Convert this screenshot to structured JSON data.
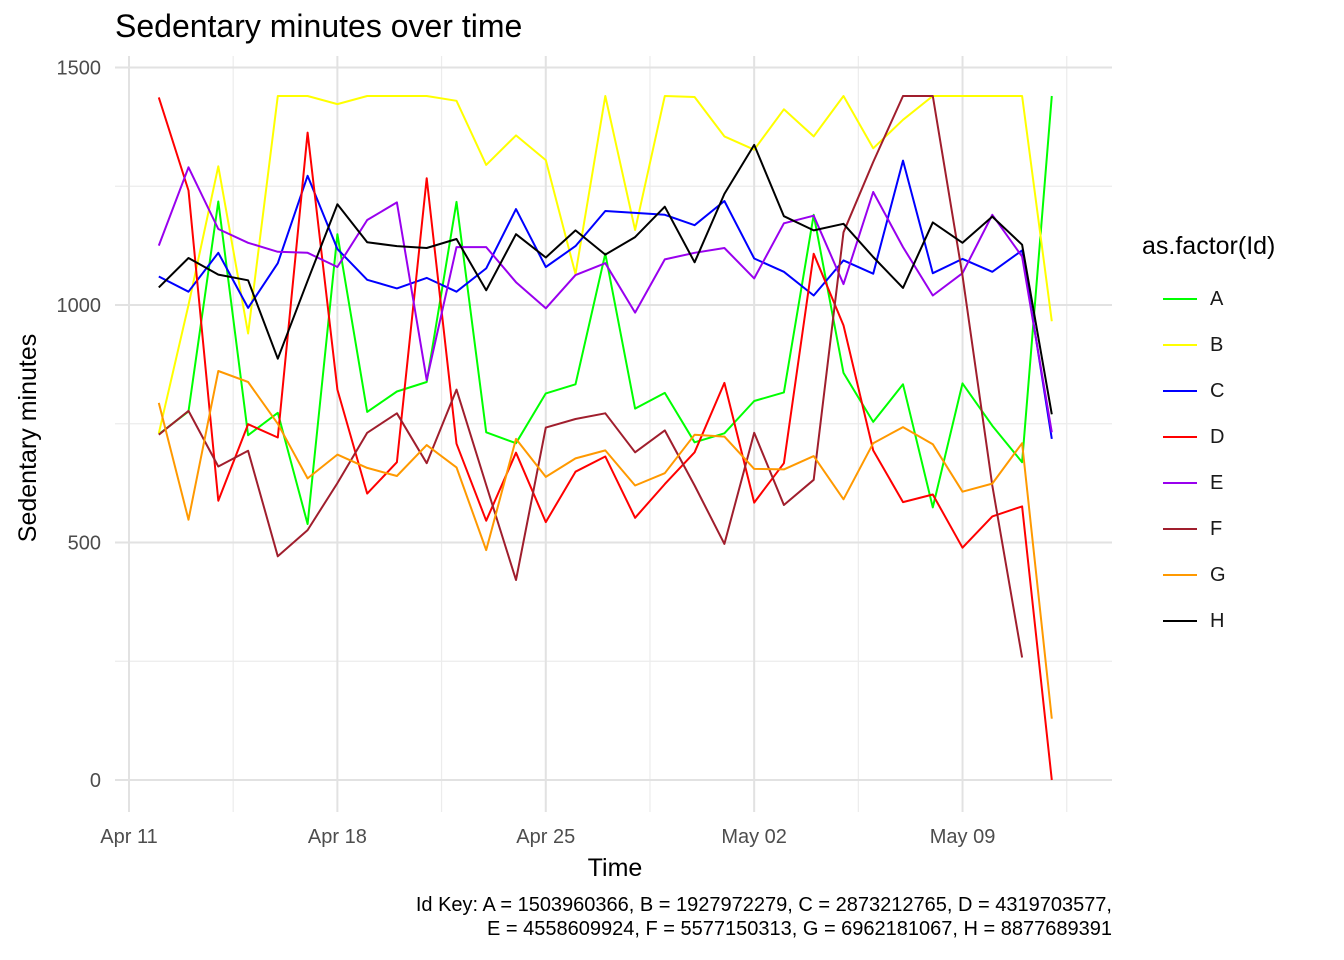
{
  "chart_data": {
    "type": "line",
    "title": "Sedentary minutes over time",
    "xlabel": "Time",
    "ylabel": "Sedentary minutes",
    "ylim": [
      -65,
      1540
    ],
    "xlim": [
      "2016-04-11",
      "2016-05-13"
    ],
    "grid": true,
    "legend_title": "as.factor(Id)",
    "legend_position": "right",
    "x_ticks": [
      {
        "label": "Apr 11",
        "date": "2016-04-11"
      },
      {
        "label": "Apr 18",
        "date": "2016-04-18"
      },
      {
        "label": "Apr 25",
        "date": "2016-04-25"
      },
      {
        "label": "May 02",
        "date": "2016-05-02"
      },
      {
        "label": "May 09",
        "date": "2016-05-09"
      }
    ],
    "y_ticks": [
      0,
      500,
      1000,
      1500
    ],
    "x": [
      "2016-04-12",
      "2016-04-13",
      "2016-04-14",
      "2016-04-15",
      "2016-04-16",
      "2016-04-17",
      "2016-04-18",
      "2016-04-19",
      "2016-04-20",
      "2016-04-21",
      "2016-04-22",
      "2016-04-23",
      "2016-04-24",
      "2016-04-25",
      "2016-04-26",
      "2016-04-27",
      "2016-04-28",
      "2016-04-29",
      "2016-04-30",
      "2016-05-01",
      "2016-05-02",
      "2016-05-03",
      "2016-05-04",
      "2016-05-05",
      "2016-05-06",
      "2016-05-07",
      "2016-05-08",
      "2016-05-09",
      "2016-05-10",
      "2016-05-11",
      "2016-05-12"
    ],
    "series": [
      {
        "name": "A",
        "color": "#00ff00",
        "values": [
          728,
          776,
          1218,
          726,
          773,
          539,
          1149,
          775,
          818,
          838,
          1217,
          732,
          709,
          814,
          833,
          1108,
          782,
          815,
          711,
          730,
          798,
          816,
          1190,
          857,
          754,
          833,
          574,
          835,
          746,
          669,
          1440
        ]
      },
      {
        "name": "B",
        "color": "#ffff00",
        "values": [
          730,
          1000,
          1292,
          940,
          1440,
          1440,
          1423,
          1440,
          1440,
          1440,
          1430,
          1295,
          1357,
          1305,
          1065,
          1440,
          1158,
          1440,
          1438,
          1355,
          1327,
          1412,
          1355,
          1440,
          1330,
          1390,
          1440,
          1440,
          1440,
          1440,
          966
        ]
      },
      {
        "name": "C",
        "color": "#0000ff",
        "values": [
          1060,
          1028,
          1110,
          994,
          1088,
          1272,
          1118,
          1053,
          1035,
          1057,
          1028,
          1077,
          1202,
          1080,
          1124,
          1198,
          1194,
          1190,
          1168,
          1219,
          1098,
          1070,
          1020,
          1094,
          1066,
          1304,
          1067,
          1097,
          1070,
          1115,
          718
        ]
      },
      {
        "name": "D",
        "color": "#ff0000",
        "values": [
          1437,
          1241,
          588,
          749,
          721,
          1363,
          822,
          603,
          669,
          1267,
          708,
          546,
          689,
          543,
          649,
          681,
          552,
          623,
          690,
          836,
          584,
          667,
          1108,
          957,
          694,
          585,
          601,
          489,
          555,
          576,
          0
        ]
      },
      {
        "name": "E",
        "color": "#9900ee",
        "values": [
          1125,
          1290,
          1160,
          1131,
          1112,
          1110,
          1080,
          1179,
          1216,
          842,
          1122,
          1122,
          1048,
          993,
          1063,
          1088,
          984,
          1096,
          1110,
          1120,
          1056,
          1172,
          1188,
          1044,
          1238,
          1122,
          1020,
          1067,
          1190,
          1102,
          732
        ]
      },
      {
        "name": "F",
        "color": "#a01e2d",
        "values": [
          727,
          777,
          660,
          693,
          471,
          526,
          625,
          731,
          772,
          667,
          822,
          621,
          421,
          742,
          760,
          772,
          690,
          736,
          620,
          497,
          731,
          579,
          632,
          1153,
          1301,
          1440,
          1440,
          1062,
          620,
          258,
          null
        ]
      },
      {
        "name": "G",
        "color": "#ff9900",
        "values": [
          794,
          548,
          861,
          838,
          750,
          635,
          685,
          657,
          640,
          705,
          658,
          484,
          718,
          638,
          677,
          694,
          620,
          646,
          727,
          723,
          655,
          654,
          682,
          591,
          709,
          743,
          707,
          607,
          624,
          709,
          129
        ]
      },
      {
        "name": "H",
        "color": "#000000",
        "values": [
          1037,
          1099,
          1064,
          1052,
          887,
          1051,
          1212,
          1132,
          1124,
          1120,
          1139,
          1031,
          1149,
          1100,
          1157,
          1106,
          1143,
          1207,
          1090,
          1234,
          1337,
          1187,
          1157,
          1171,
          1101,
          1036,
          1174,
          1131,
          1186,
          1127,
          770
        ]
      }
    ]
  },
  "caption": {
    "line1": "Id Key: A = 1503960366, B = 1927972279, C = 2873212765, D = 4319703577,",
    "line2": "E = 4558609924, F = 5577150313, G = 6962181067, H = 8877689391"
  }
}
